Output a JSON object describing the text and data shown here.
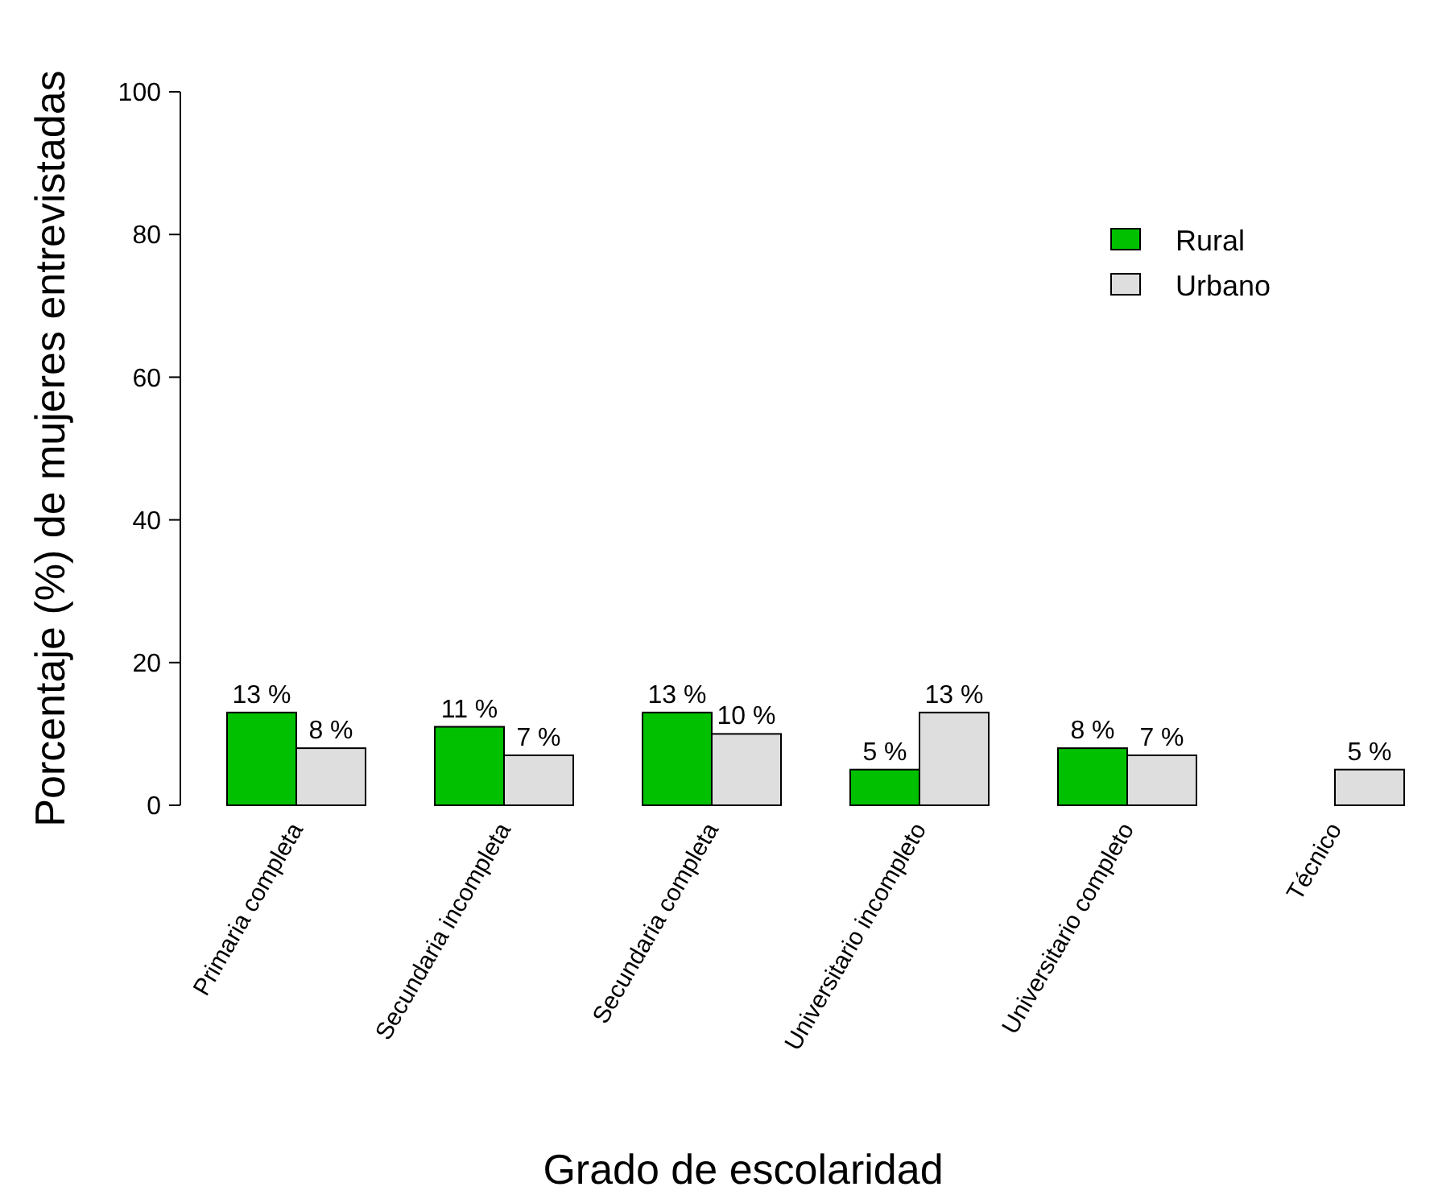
{
  "chart_data": {
    "type": "bar",
    "xlabel": "Grado de escolaridad",
    "ylabel": "Porcentaje (%) de mujeres entrevistadas",
    "categories": [
      "Primaria completa",
      "Secundaria incompleta",
      "Secundaria completa",
      "Universitario incompleto",
      "Universitario completo",
      "Técnico"
    ],
    "series": [
      {
        "name": "Rural",
        "color": "#00c000",
        "values": [
          13,
          11,
          13,
          5,
          8,
          null
        ],
        "value_labels": [
          "13 %",
          "11 %",
          "13 %",
          "5 %",
          "8 %",
          null
        ]
      },
      {
        "name": "Urbano",
        "color": "#dedede",
        "values": [
          8,
          7,
          10,
          13,
          7,
          5
        ],
        "value_labels": [
          "8 %",
          "7 %",
          "10 %",
          "13 %",
          "7 %",
          "5 %"
        ]
      }
    ],
    "ylim": [
      0,
      100
    ],
    "yticks": [
      0,
      20,
      40,
      60,
      80,
      100
    ],
    "legend": "top right",
    "grid": false
  }
}
